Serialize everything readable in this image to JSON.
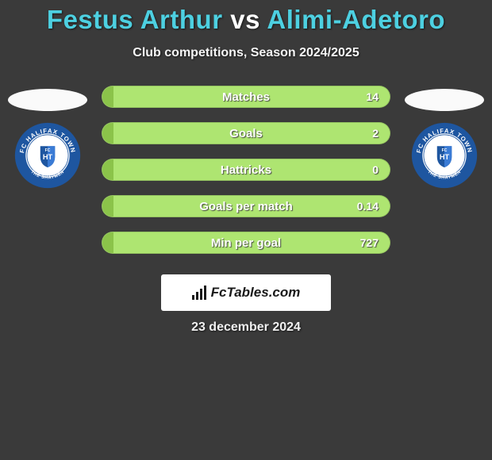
{
  "title": {
    "player1": "Festus Arthur",
    "vs": "vs",
    "player2": "Alimi-Adetoro"
  },
  "subtitle": "Club competitions, Season 2024/2025",
  "badge": {
    "outer_text": "FC HALIFAX TOWN",
    "bottom_text": "THE SHAYMEN",
    "ring_color": "#1e56a0",
    "inner_bg": "#ffffff",
    "text_color": "#ffffff"
  },
  "stats": [
    {
      "label": "Matches",
      "value": "14",
      "fill_pct": 4
    },
    {
      "label": "Goals",
      "value": "2",
      "fill_pct": 4
    },
    {
      "label": "Hattricks",
      "value": "0",
      "fill_pct": 4
    },
    {
      "label": "Goals per match",
      "value": "0.14",
      "fill_pct": 4
    },
    {
      "label": "Min per goal",
      "value": "727",
      "fill_pct": 4
    }
  ],
  "bar_colors": {
    "fill": "#8bc34a",
    "track": "#aee571"
  },
  "logo_text": "FcTables.com",
  "date": "23 december 2024"
}
